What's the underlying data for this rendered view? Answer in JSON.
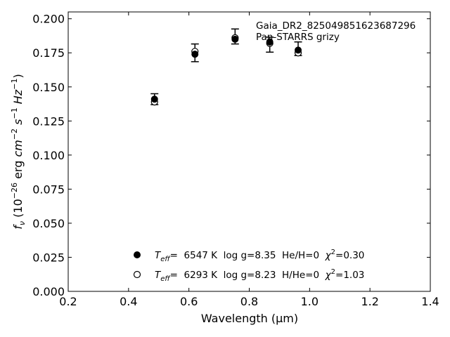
{
  "chart_data": {
    "type": "scatter",
    "title": "",
    "xlabel": "Wavelength (μm)",
    "ylabel": "f_ν (10^-26 erg cm^-2 s^-1 Hz^-1)",
    "xlim": [
      0.2,
      1.4
    ],
    "ylim": [
      0.0,
      0.205
    ],
    "xticks": [
      "0.2",
      "0.4",
      "0.6",
      "0.8",
      "1.0",
      "1.2",
      "1.4"
    ],
    "yticks": [
      "0.000",
      "0.025",
      "0.050",
      "0.075",
      "0.100",
      "0.125",
      "0.150",
      "0.175",
      "0.200"
    ],
    "grid": false,
    "annotation": [
      "Gaia_DR2_825049851623687296",
      "Pan-STARRS grizy"
    ],
    "observed": {
      "x": [
        0.486,
        0.62,
        0.753,
        0.868,
        0.962
      ],
      "y": [
        0.141,
        0.175,
        0.187,
        0.181,
        0.178
      ],
      "yerr": [
        0.004,
        0.0065,
        0.0055,
        0.0055,
        0.005
      ]
    },
    "series": [
      {
        "name": "Teff= 6547 K log g=8.35 He/H=0 χ²=0.30",
        "marker": "filled-circle",
        "x": [
          0.486,
          0.62,
          0.753,
          0.868,
          0.962
        ],
        "y": [
          0.141,
          0.174,
          0.185,
          0.183,
          0.177
        ]
      },
      {
        "name": "Teff= 6293 K log g=8.23 H/He=0 χ²=1.03",
        "marker": "open-circle",
        "x": [
          0.486,
          0.62,
          0.753,
          0.868,
          0.962
        ],
        "y": [
          0.139,
          0.176,
          0.186,
          0.182,
          0.175
        ]
      }
    ],
    "legend": {
      "placement": "bottom-center",
      "entries": [
        {
          "teff_label": "T",
          "teff_sub": "eff",
          "rest": "=  6547 K  log g=8.35  He/H=0  ",
          "chi_label": "χ",
          "chi_sup": "2",
          "chi_value": "=0.30"
        },
        {
          "teff_label": "T",
          "teff_sub": "eff",
          "rest": "=  6293 K  log g=8.23  H/He=0  ",
          "chi_label": "χ",
          "chi_sup": "2",
          "chi_value": "=1.03"
        }
      ]
    }
  }
}
